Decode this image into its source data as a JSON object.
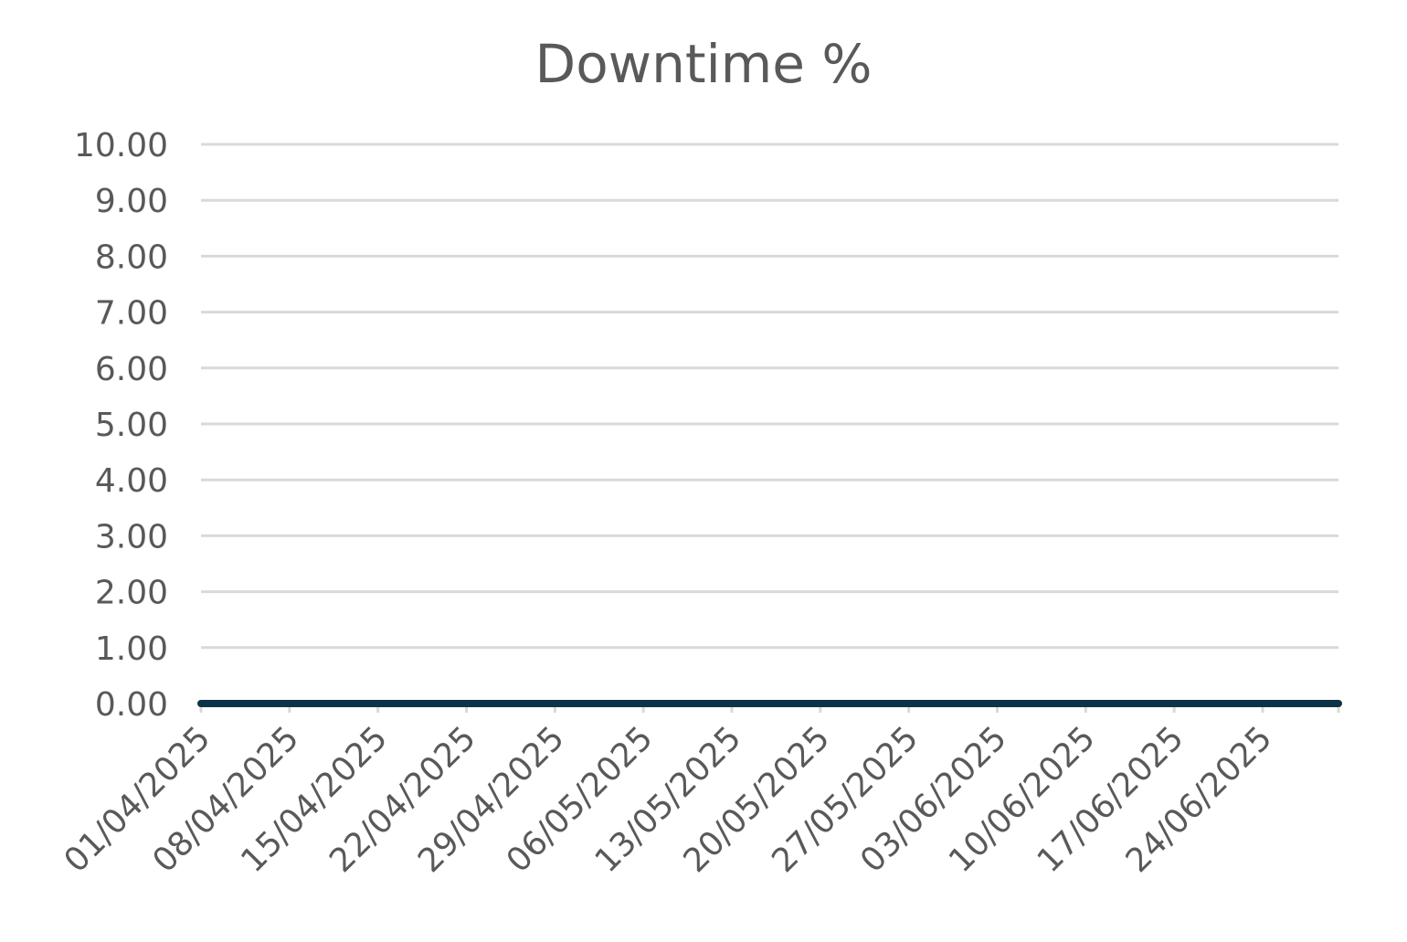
{
  "chart_data": {
    "type": "line",
    "title": "Downtime %",
    "xlabel": "",
    "ylabel": "",
    "ylim": [
      0,
      10
    ],
    "y_ticks": [
      "0.00",
      "1.00",
      "2.00",
      "3.00",
      "4.00",
      "5.00",
      "6.00",
      "7.00",
      "8.00",
      "9.00",
      "10.00"
    ],
    "x_range": [
      "2025-04-01",
      "2025-06-30"
    ],
    "x_ticks": [
      "01/04/2025",
      "08/04/2025",
      "15/04/2025",
      "22/04/2025",
      "29/04/2025",
      "06/05/2025",
      "13/05/2025",
      "20/05/2025",
      "27/05/2025",
      "03/06/2025",
      "10/06/2025",
      "17/06/2025",
      "24/06/2025"
    ],
    "grid": true,
    "legend": "none",
    "series": [
      {
        "x": [
          "2025-04-01",
          "2025-06-30"
        ],
        "y": [
          0.0,
          0.0
        ],
        "color": "#0d3349"
      }
    ],
    "colors": {
      "text": "#595959",
      "grid": "#d9d9d9",
      "series": "#0d3349"
    }
  }
}
